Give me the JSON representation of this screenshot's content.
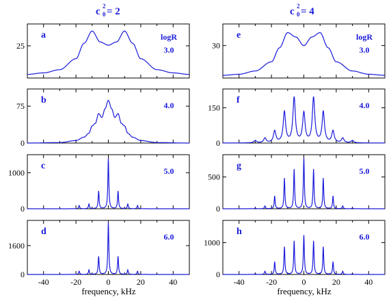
{
  "columns": [
    {
      "title_main": "c",
      "title_sub": "2",
      "title_subscript": "0",
      "title_rest": " = 2"
    },
    {
      "title_main": "c",
      "title_sub": "2",
      "title_subscript": "0",
      "title_rest": " = 4"
    }
  ],
  "xlabel": "frequency, kHz",
  "legend_title": "logR",
  "colors": {
    "curve": "#1a1adb",
    "text": "#1a1adb"
  },
  "chart_data": [
    {
      "type": "line",
      "panel": "a",
      "logR": "3.0",
      "xlim": [
        -50,
        50
      ],
      "xticks": [
        -40,
        -20,
        0,
        20,
        40
      ],
      "yticks": [
        25
      ],
      "ylim": [
        0,
        42
      ],
      "x": [
        -50,
        -40,
        -30,
        -20,
        -15,
        -10,
        -5,
        0,
        5,
        10,
        15,
        20,
        30,
        40,
        50
      ],
      "y": [
        2.8,
        4.0,
        6.5,
        15,
        27,
        36.5,
        28,
        25.5,
        28,
        36.5,
        27,
        15,
        6.5,
        4.0,
        2.8
      ]
    },
    {
      "type": "line",
      "panel": "e",
      "logR": "3.0",
      "xlim": [
        -50,
        50
      ],
      "xticks": [
        -40,
        -20,
        0,
        20,
        40
      ],
      "yticks": [
        30
      ],
      "ylim": [
        0,
        50
      ],
      "x": [
        -50,
        -40,
        -30,
        -20,
        -15,
        -10,
        -5,
        0,
        5,
        10,
        15,
        20,
        30,
        40,
        50
      ],
      "y": [
        2.5,
        3.5,
        6.5,
        15,
        28,
        42,
        38,
        30,
        38,
        42,
        28,
        15,
        6.5,
        3.5,
        2.5
      ]
    },
    {
      "type": "line",
      "panel": "b",
      "logR": "4.0",
      "xlim": [
        -50,
        50
      ],
      "xticks": [
        -40,
        -20,
        0,
        20,
        40
      ],
      "yticks": [
        0,
        75
      ],
      "ylim": [
        0,
        110
      ],
      "x": [
        -50,
        -30,
        -20,
        -15,
        -12,
        -10,
        -8,
        -6,
        -4,
        -2,
        0,
        2,
        4,
        6,
        8,
        10,
        12,
        15,
        20,
        30,
        50
      ],
      "y": [
        0,
        1,
        5,
        12,
        20,
        35,
        40,
        60,
        52,
        70,
        87,
        70,
        52,
        60,
        40,
        35,
        20,
        12,
        5,
        1,
        0
      ]
    },
    {
      "type": "line",
      "panel": "f",
      "logR": "4.0",
      "xlim": [
        -50,
        50
      ],
      "xticks": [
        -40,
        -20,
        0,
        20,
        40
      ],
      "yticks": [
        0,
        150
      ],
      "ylim": [
        0,
        230
      ],
      "peaks_x": [
        -30,
        -24,
        -18,
        -12,
        -6,
        0,
        6,
        12,
        18,
        24,
        30
      ],
      "peaks_y": [
        10,
        20,
        50,
        130,
        190,
        125,
        190,
        130,
        50,
        20,
        10
      ]
    },
    {
      "type": "line",
      "panel": "c",
      "logR": "5.0",
      "xlim": [
        -50,
        50
      ],
      "xticks": [
        -40,
        -20,
        0,
        20,
        40
      ],
      "yticks": [
        0,
        1000
      ],
      "ylim": [
        0,
        1500
      ],
      "peaks_x": [
        -18,
        -12,
        -6,
        0,
        6,
        12,
        18
      ],
      "peaks_y": [
        90,
        130,
        490,
        1400,
        490,
        130,
        90
      ]
    },
    {
      "type": "line",
      "panel": "g",
      "logR": "5.0",
      "xlim": [
        -50,
        50
      ],
      "xticks": [
        -40,
        -20,
        0,
        20,
        40
      ],
      "yticks": [
        0,
        500
      ],
      "ylim": [
        0,
        850
      ],
      "peaks_x": [
        -30,
        -24,
        -18,
        -12,
        -6,
        0,
        6,
        12,
        18,
        24,
        30
      ],
      "peaks_y": [
        10,
        45,
        200,
        480,
        620,
        800,
        620,
        480,
        200,
        45,
        10
      ]
    },
    {
      "type": "line",
      "panel": "d",
      "logR": "6.0",
      "xlim": [
        -50,
        50
      ],
      "xticks": [
        -40,
        -20,
        0,
        20,
        40
      ],
      "yticks": [
        0,
        1600
      ],
      "ylim": [
        0,
        3000
      ],
      "peaks_x": [
        -18,
        -12,
        -6,
        0,
        6,
        12,
        18
      ],
      "peaks_y": [
        180,
        250,
        1000,
        2900,
        1000,
        250,
        180
      ]
    },
    {
      "type": "line",
      "panel": "h",
      "logR": "6.0",
      "xlim": [
        -50,
        50
      ],
      "xticks": [
        -40,
        -20,
        0,
        20,
        40
      ],
      "yticks": [
        0,
        1000
      ],
      "ylim": [
        0,
        1700
      ],
      "peaks_x": [
        -30,
        -24,
        -18,
        -12,
        -6,
        0,
        6,
        12,
        18,
        24,
        30
      ],
      "peaks_y": [
        20,
        100,
        400,
        870,
        1050,
        1230,
        1050,
        870,
        400,
        100,
        20
      ]
    }
  ]
}
